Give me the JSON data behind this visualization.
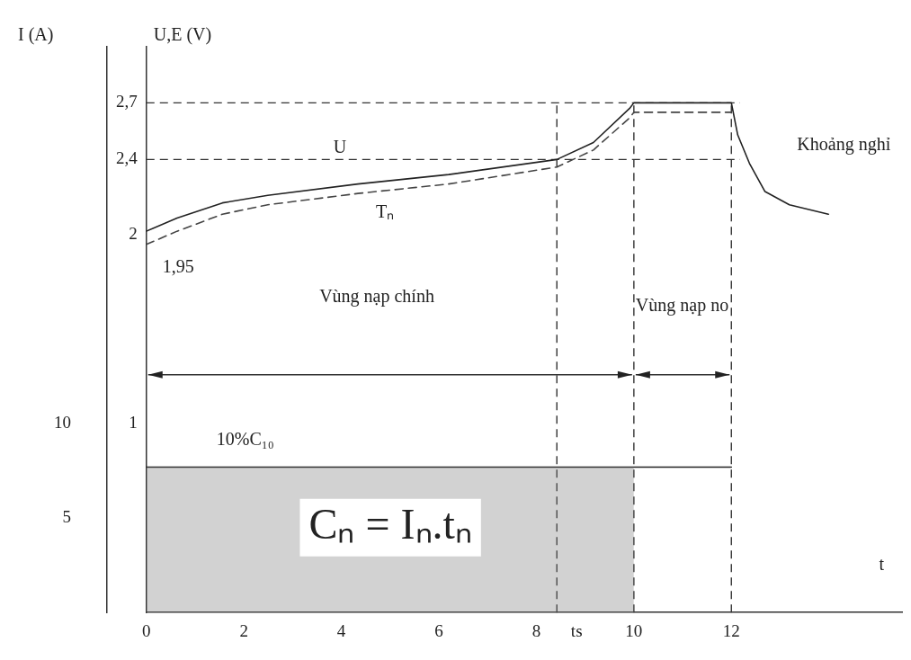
{
  "chart_data": {
    "type": "line",
    "xlabel": "t",
    "ylabel": "I (A)",
    "y2label": "U,E (V)",
    "xlim": [
      0,
      15.5
    ],
    "xticks": [
      0,
      2,
      4,
      6,
      8,
      10,
      12
    ],
    "ylim": [
      0,
      30
    ],
    "yticks": [
      5,
      10
    ],
    "y2lim": [
      0,
      3
    ],
    "y2ticks": [
      1,
      2,
      {
        "value": 2.4,
        "label": "2,4"
      },
      {
        "value": 2.7,
        "label": "2,7"
      }
    ],
    "series": [
      {
        "type": "area",
        "color": "#777777",
        "x": [
          0,
          10
        ],
        "values": [
          7.7,
          7.7
        ]
      },
      {
        "name": "10%C₁₀",
        "color": "#222222",
        "x": [
          0,
          12
        ],
        "values": [
          7.7,
          7.7
        ]
      },
      {
        "name": "U",
        "color": "#222222",
        "axis": "y2",
        "x": [
          0,
          0.63,
          1.56,
          2.49,
          4.34,
          6.2,
          8.42,
          9.17,
          9.91,
          10,
          12,
          12.13,
          12.37,
          12.69,
          13.19,
          13.99
        ],
        "values": [
          2.02,
          2.09,
          2.17,
          2.21,
          2.27,
          2.32,
          2.4,
          2.49,
          2.67,
          2.7,
          2.7,
          2.53,
          2.38,
          2.23,
          2.16,
          2.11
        ]
      },
      {
        "name": "Tₙ",
        "color": "#444444",
        "axis": "y2",
        "line_style": "dashed",
        "x": [
          0,
          0.63,
          1.56,
          2.49,
          4.34,
          6.2,
          8.42,
          9.17,
          9.91,
          10,
          12
        ],
        "values": [
          1.95,
          2.02,
          2.11,
          2.16,
          2.22,
          2.27,
          2.36,
          2.45,
          2.62,
          2.65,
          2.65
        ]
      }
    ],
    "ref_lines": [
      {
        "axis": "y2",
        "value": 2.7,
        "line_style": "dashed"
      },
      {
        "axis": "y2",
        "value": 2.4,
        "line_style": "dashed"
      },
      {
        "axis": "x",
        "value": 8.42,
        "label": "ts",
        "line_style": "dashed"
      },
      {
        "axis": "x",
        "value": 10,
        "line_style": "dashed"
      },
      {
        "axis": "x",
        "value": 12,
        "line_style": "dashed"
      }
    ],
    "annotations": [
      "1,95",
      "Vùng nạp chính",
      "Vùng nạp no",
      "Khoảng nghỉ",
      "Cₙ = Iₙ.tₙ"
    ],
    "grid": false,
    "legend": false,
    "marker": "none"
  }
}
